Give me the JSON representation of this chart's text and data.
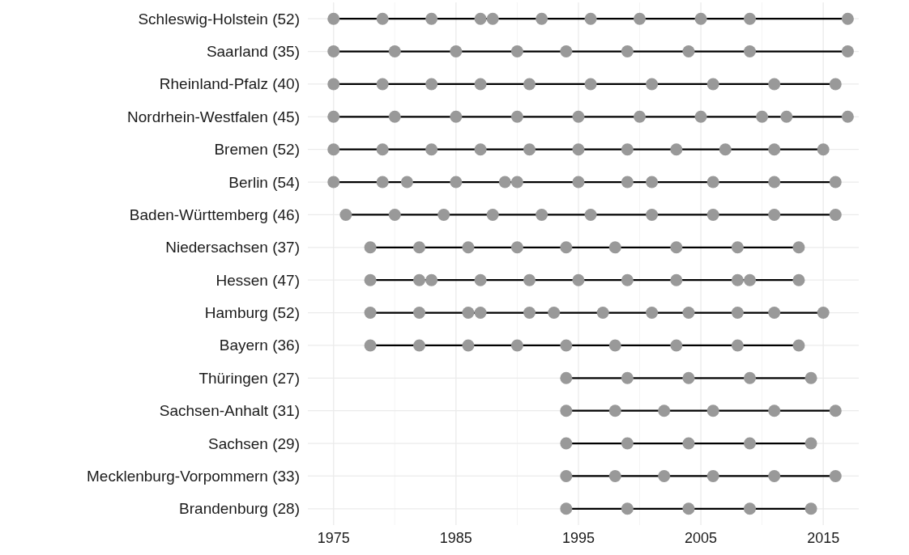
{
  "chart_data": {
    "type": "scatter",
    "orientation": "horizontal",
    "grid": true,
    "marker": "circle",
    "categories": [
      "Schleswig-Holstein (52)",
      "Saarland (35)",
      "Rheinland-Pfalz (40)",
      "Nordrhein-Westfalen (45)",
      "Bremen (52)",
      "Berlin (54)",
      "Baden-Württemberg (46)",
      "Niedersachsen (37)",
      "Hessen (47)",
      "Hamburg (52)",
      "Bayern (36)",
      "Thüringen (27)",
      "Sachsen-Anhalt (31)",
      "Sachsen (29)",
      "Mecklenburg-Vorpommern (33)",
      "Brandenburg (28)"
    ],
    "xlim": [
      1972.9,
      2017.9
    ],
    "xticks": [
      1975,
      {
        "value": 1980,
        "label": null
      },
      1985,
      {
        "value": 1990,
        "label": null
      },
      1995,
      {
        "value": 2000,
        "label": null
      },
      2005,
      {
        "value": 2010,
        "label": null
      },
      2015
    ],
    "series": [
      {
        "color": "#999999",
        "values": [
          1975,
          1975,
          1975,
          1975,
          1975,
          1975,
          1976,
          1978,
          1978,
          1978,
          1978,
          1994,
          1994,
          1994,
          1994,
          1994
        ]
      },
      {
        "color": "#999999",
        "values": [
          1979,
          1980,
          1979,
          1980,
          1979,
          1979,
          1980,
          1982,
          1982,
          1982,
          1982,
          1999,
          1998,
          1999,
          1998,
          1999
        ]
      },
      {
        "color": "#999999",
        "values": [
          1983,
          1985,
          1983,
          1985,
          1983,
          1981,
          1984,
          1986,
          1983,
          1986,
          1986,
          2004,
          2002,
          2004,
          2002,
          2004
        ]
      },
      {
        "color": "#999999",
        "values": [
          1987,
          1990,
          1987,
          1990,
          1987,
          1985,
          1988,
          1990,
          1987,
          1987,
          1990,
          2009,
          2006,
          2009,
          2006,
          2009
        ]
      },
      {
        "color": "#999999",
        "values": [
          1988,
          1994,
          1991,
          1995,
          1991,
          1989,
          1992,
          1994,
          1991,
          1991,
          1994,
          2014,
          2011,
          2014,
          2011,
          2014
        ]
      },
      {
        "color": "#999999",
        "values": [
          1992,
          1999,
          1996,
          2000,
          1995,
          1990,
          1996,
          1998,
          1995,
          1993,
          1998,
          null,
          2016,
          null,
          2016,
          null
        ]
      },
      {
        "color": "#999999",
        "values": [
          1996,
          2004,
          2001,
          2005,
          1999,
          1995,
          2001,
          2003,
          1999,
          1997,
          2003,
          null,
          null,
          null,
          null,
          null
        ]
      },
      {
        "color": "#999999",
        "values": [
          2000,
          2009,
          2006,
          2010,
          2003,
          1999,
          2006,
          2008,
          2003,
          2001,
          2008,
          null,
          null,
          null,
          null,
          null
        ]
      },
      {
        "color": "#999999",
        "values": [
          2005,
          2017,
          2011,
          2012,
          2007,
          2001,
          2011,
          2013,
          2008,
          2004,
          2013,
          null,
          null,
          null,
          null,
          null
        ]
      },
      {
        "color": "#999999",
        "values": [
          2009,
          null,
          2016,
          2017,
          2011,
          2006,
          2016,
          null,
          2009,
          2008,
          null,
          null,
          null,
          null,
          null,
          null
        ]
      },
      {
        "color": "#999999",
        "values": [
          2017,
          null,
          null,
          null,
          2015,
          2011,
          null,
          null,
          2013,
          2011,
          null,
          null,
          null,
          null,
          null,
          null
        ]
      },
      {
        "color": "#999999",
        "values": [
          null,
          null,
          null,
          null,
          null,
          2016,
          null,
          null,
          null,
          2015,
          null,
          null,
          null,
          null,
          null,
          null
        ]
      }
    ]
  }
}
